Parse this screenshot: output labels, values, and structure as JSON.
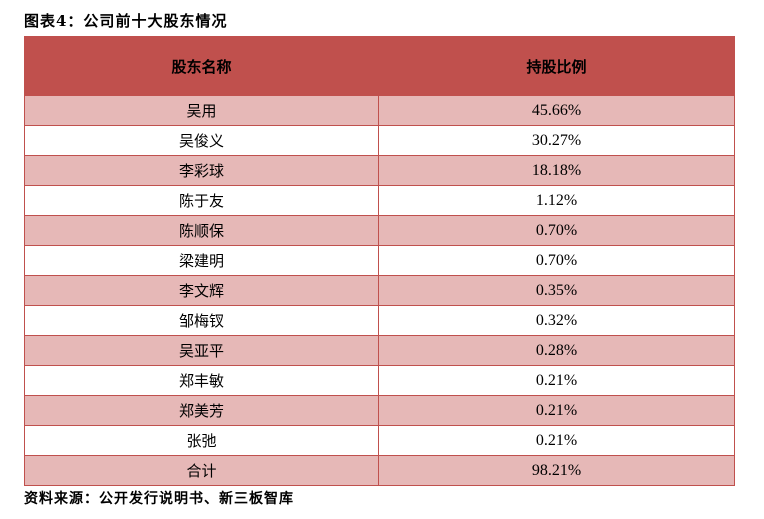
{
  "title": "图表4：公司前十大股东情况",
  "table": {
    "headers": [
      "股东名称",
      "持股比例"
    ],
    "rows": [
      [
        "吴用",
        "45.66%"
      ],
      [
        "吴俊义",
        "30.27%"
      ],
      [
        "李彩球",
        "18.18%"
      ],
      [
        "陈于友",
        "1.12%"
      ],
      [
        "陈顺保",
        "0.70%"
      ],
      [
        "梁建明",
        "0.70%"
      ],
      [
        "李文辉",
        "0.35%"
      ],
      [
        "邹梅钗",
        "0.32%"
      ],
      [
        "吴亚平",
        "0.28%"
      ],
      [
        "郑丰敏",
        "0.21%"
      ],
      [
        "郑美芳",
        "0.21%"
      ],
      [
        "张弛",
        "0.21%"
      ],
      [
        "合计",
        "98.21%"
      ]
    ]
  },
  "source": "资料来源：公开发行说明书、新三板智库",
  "colors": {
    "header": "#c0504d",
    "band": "#e6b8b7"
  }
}
